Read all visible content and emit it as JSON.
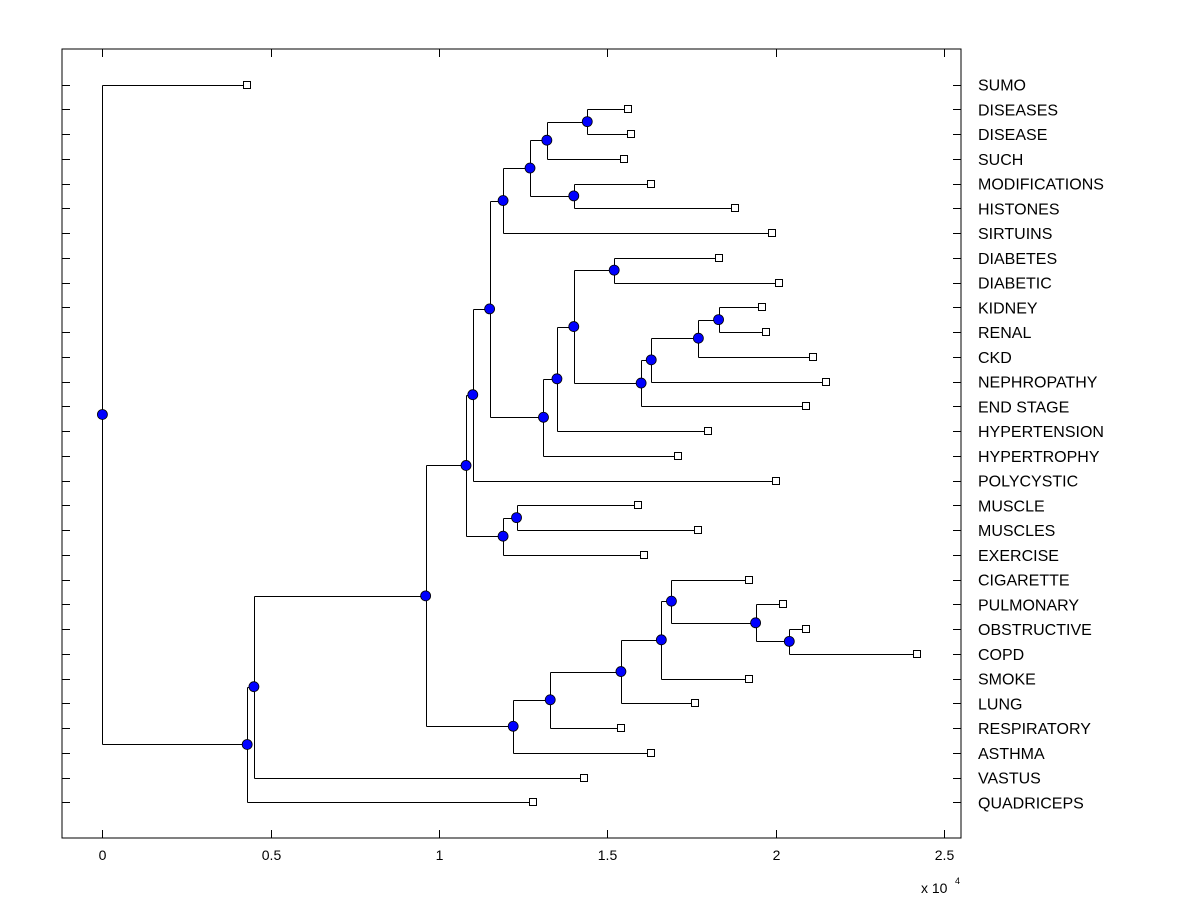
{
  "chart_data": {
    "type": "dendrogram",
    "title": "",
    "xlabel": "",
    "ylabel": "",
    "xlim": [
      -0.12,
      2.55
    ],
    "x_ticks": [
      0,
      0.5,
      1,
      1.5,
      2,
      2.5
    ],
    "x_tick_labels": [
      "0",
      "0.5",
      "1",
      "1.5",
      "2",
      "2.5"
    ],
    "x_scale_base": "x 10",
    "x_scale_exponent": "4",
    "leaf_labels": [
      "SUMO",
      "DISEASES",
      "DISEASE",
      "SUCH",
      "MODIFICATIONS",
      "HISTONES",
      "SIRTUINS",
      "DIABETES",
      "DIABETIC",
      "KIDNEY",
      "RENAL",
      "CKD",
      "NEPHROPATHY",
      "END STAGE",
      "HYPERTENSION",
      "HYPERTROPHY",
      "POLYCYSTIC",
      "MUSCLE",
      "MUSCLES",
      "EXERCISE",
      "CIGARETTE",
      "PULMONARY",
      "OBSTRUCTIVE",
      "COPD",
      "SMOKE",
      "LUNG",
      "RESPIRATORY",
      "ASTHMA",
      "VASTUS",
      "QUADRICEPS"
    ],
    "leaf_x": [
      0.43,
      1.56,
      1.57,
      1.55,
      1.63,
      1.88,
      1.99,
      1.83,
      2.01,
      1.96,
      1.97,
      2.11,
      2.15,
      2.09,
      1.8,
      1.71,
      2.0,
      1.59,
      1.77,
      1.61,
      1.92,
      2.02,
      2.09,
      2.42,
      1.92,
      1.76,
      1.54,
      1.63,
      1.43,
      1.28
    ],
    "nodes": [
      {
        "id": "n1",
        "x": 1.44,
        "children": [
          "L1",
          "L2"
        ]
      },
      {
        "id": "n2",
        "x": 1.32,
        "children": [
          "n1",
          "L3"
        ]
      },
      {
        "id": "n3",
        "x": 1.4,
        "children": [
          "L4",
          "L5"
        ]
      },
      {
        "id": "n4",
        "x": 1.27,
        "children": [
          "n2",
          "n3"
        ]
      },
      {
        "id": "n5",
        "x": 1.19,
        "children": [
          "n4",
          "L6"
        ]
      },
      {
        "id": "n6",
        "x": 1.52,
        "children": [
          "L7",
          "L8"
        ]
      },
      {
        "id": "n7",
        "x": 1.83,
        "children": [
          "L9",
          "L10"
        ]
      },
      {
        "id": "n8",
        "x": 1.77,
        "children": [
          "n7",
          "L11"
        ]
      },
      {
        "id": "n9",
        "x": 1.63,
        "children": [
          "n8",
          "L12"
        ]
      },
      {
        "id": "n10",
        "x": 1.6,
        "children": [
          "n9",
          "L13"
        ]
      },
      {
        "id": "n11",
        "x": 1.4,
        "children": [
          "n6",
          "n10"
        ]
      },
      {
        "id": "n12",
        "x": 1.35,
        "children": [
          "n11",
          "L14"
        ]
      },
      {
        "id": "n13",
        "x": 1.31,
        "children": [
          "n12",
          "L15"
        ]
      },
      {
        "id": "n14",
        "x": 1.15,
        "children": [
          "n5",
          "n13"
        ]
      },
      {
        "id": "n15",
        "x": 1.1,
        "children": [
          "n14",
          "L16"
        ]
      },
      {
        "id": "n16",
        "x": 1.23,
        "children": [
          "L17",
          "L18"
        ]
      },
      {
        "id": "n17",
        "x": 1.19,
        "children": [
          "n16",
          "L19"
        ]
      },
      {
        "id": "n18",
        "x": 1.08,
        "children": [
          "n15",
          "n17"
        ]
      },
      {
        "id": "n19",
        "x": 2.04,
        "children": [
          "L22",
          "L23"
        ]
      },
      {
        "id": "n20",
        "x": 1.94,
        "children": [
          "L21",
          "n19"
        ]
      },
      {
        "id": "n21",
        "x": 1.69,
        "children": [
          "L20",
          "n20"
        ]
      },
      {
        "id": "n22",
        "x": 1.66,
        "children": [
          "n21",
          "L24"
        ]
      },
      {
        "id": "n23",
        "x": 1.54,
        "children": [
          "n22",
          "L25"
        ]
      },
      {
        "id": "n24",
        "x": 1.33,
        "children": [
          "n23",
          "L26"
        ]
      },
      {
        "id": "n25",
        "x": 1.22,
        "children": [
          "n24",
          "L27"
        ]
      },
      {
        "id": "n26",
        "x": 0.96,
        "children": [
          "n18",
          "n25"
        ]
      },
      {
        "id": "n27",
        "x": 0.45,
        "children": [
          "n26",
          "L28"
        ]
      },
      {
        "id": "n28",
        "x": 0.43,
        "children": [
          "n27",
          "L29"
        ]
      },
      {
        "id": "n29",
        "x": 0.0,
        "children": [
          "L0",
          "n28"
        ]
      }
    ]
  }
}
